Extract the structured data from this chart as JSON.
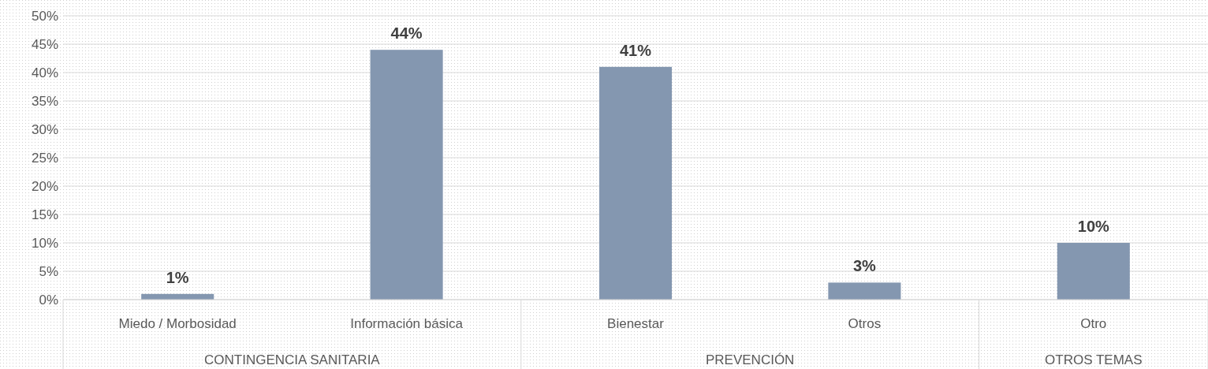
{
  "chart_data": {
    "type": "bar",
    "categories": [
      "Miedo / Morbosidad",
      "Información básica",
      "Bienestar",
      "Otros",
      "Otro"
    ],
    "values": [
      1,
      44,
      41,
      3,
      10
    ],
    "color": "#8497b0",
    "data_labels": true,
    "value_labels": [
      "1%",
      "44%",
      "41%",
      "3%",
      "10%"
    ],
    "ylim": [
      0,
      50
    ],
    "yticks": [
      {
        "value": 0,
        "label": "0%"
      },
      {
        "value": 5,
        "label": "5%"
      },
      {
        "value": 10,
        "label": "10%"
      },
      {
        "value": 15,
        "label": "15%"
      },
      {
        "value": 20,
        "label": "20%"
      },
      {
        "value": 25,
        "label": "25%"
      },
      {
        "value": 30,
        "label": "30%"
      },
      {
        "value": 35,
        "label": "35%"
      },
      {
        "value": 40,
        "label": "40%"
      },
      {
        "value": 45,
        "label": "45%"
      },
      {
        "value": 50,
        "label": "50%"
      }
    ],
    "grid": "y",
    "annotations": [
      "CONTINGENCIA SANITARIA",
      "PREVENCIÓN",
      "OTROS TEMAS"
    ]
  }
}
